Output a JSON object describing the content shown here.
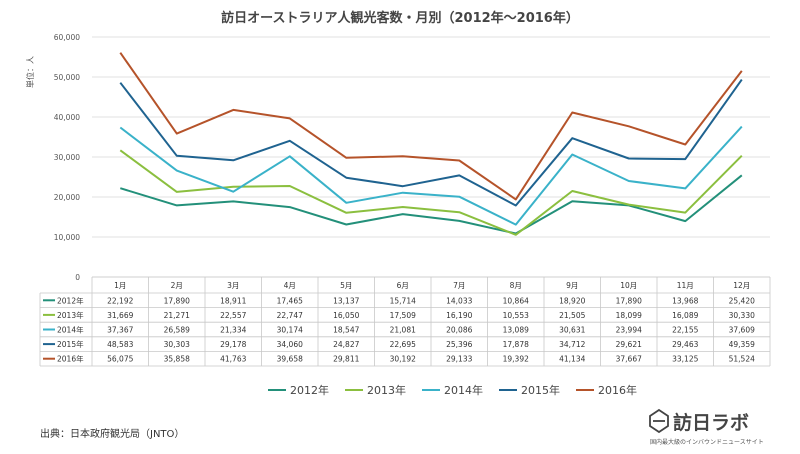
{
  "chart_data": {
    "type": "line",
    "title": "訪日オーストラリア人観光客数・月別（2012年〜2016年）",
    "ylabel": "単位：人",
    "ylim": [
      0,
      60000
    ],
    "yticks": [
      "0",
      "10,000",
      "20,000",
      "30,000",
      "40,000",
      "50,000",
      "60,000"
    ],
    "grid": true,
    "legend_position": "bottom",
    "categories": [
      "1月",
      "2月",
      "3月",
      "4月",
      "5月",
      "6月",
      "7月",
      "8月",
      "9月",
      "10月",
      "11月",
      "12月"
    ],
    "series": [
      {
        "name": "2012年",
        "color": "#23907a",
        "values": [
          22192,
          17890,
          18911,
          17465,
          13137,
          15714,
          14033,
          10864,
          18920,
          17890,
          13968,
          25420
        ],
        "labels": [
          "22,192",
          "17,890",
          "18,911",
          "17,465",
          "13,137",
          "15,714",
          "14,033",
          "10,864",
          "18,920",
          "17,890",
          "13,968",
          "25,420"
        ]
      },
      {
        "name": "2013年",
        "color": "#8bbf3f",
        "values": [
          31669,
          21271,
          22557,
          22747,
          16050,
          17509,
          16190,
          10553,
          21505,
          18099,
          16089,
          30330
        ],
        "labels": [
          "31,669",
          "21,271",
          "22,557",
          "22,747",
          "16,050",
          "17,509",
          "16,190",
          "10,553",
          "21,505",
          "18,099",
          "16,089",
          "30,330"
        ]
      },
      {
        "name": "2014年",
        "color": "#3ab2c9",
        "values": [
          37367,
          26589,
          21334,
          30174,
          18547,
          21081,
          20086,
          13089,
          30631,
          23994,
          22155,
          37609
        ],
        "labels": [
          "37,367",
          "26,589",
          "21,334",
          "30,174",
          "18,547",
          "21,081",
          "20,086",
          "13,089",
          "30,631",
          "23,994",
          "22,155",
          "37,609"
        ]
      },
      {
        "name": "2015年",
        "color": "#1f6390",
        "values": [
          48583,
          30303,
          29178,
          34060,
          24827,
          22695,
          25396,
          17878,
          34712,
          29621,
          29463,
          49359
        ],
        "labels": [
          "48,583",
          "30,303",
          "29,178",
          "34,060",
          "24,827",
          "22,695",
          "25,396",
          "17,878",
          "34,712",
          "29,621",
          "29,463",
          "49,359"
        ]
      },
      {
        "name": "2016年",
        "color": "#b5532a",
        "values": [
          56075,
          35858,
          41763,
          39658,
          29811,
          30192,
          29133,
          19392,
          41134,
          37667,
          33125,
          51524
        ],
        "labels": [
          "56,075",
          "35,858",
          "41,763",
          "39,658",
          "29,811",
          "30,192",
          "29,133",
          "19,392",
          "41,134",
          "37,667",
          "33,125",
          "51,524"
        ]
      }
    ]
  },
  "source": "出典：日本政府観光局（JNTO）",
  "logo": {
    "name": "訪日ラボ",
    "tagline": "国内最大級のインバウンドニュースサイト"
  }
}
